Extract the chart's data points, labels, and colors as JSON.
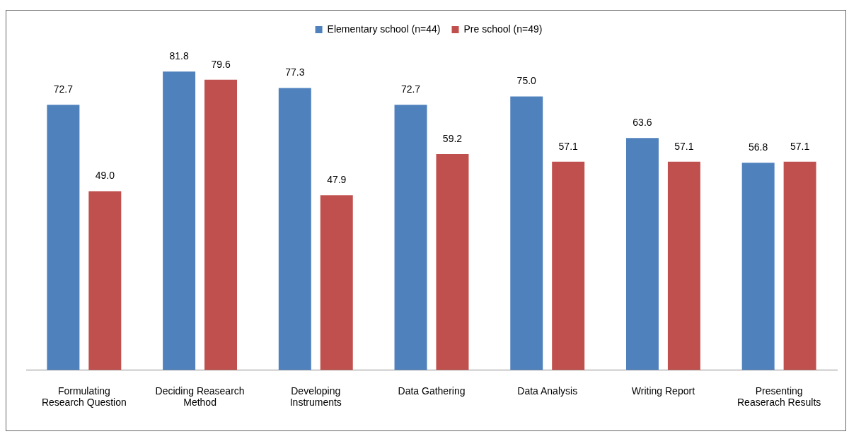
{
  "chart_data": {
    "type": "bar",
    "categories": [
      "Formulating Research Question",
      "Deciding Reasearch Method",
      "Developing Instruments",
      "Data Gathering",
      "Data Analysis",
      "Writing Report",
      "Presenting Reaserach Results"
    ],
    "series": [
      {
        "name": "Elementary school (n=44)",
        "color": "#4f81bd",
        "values": [
          72.7,
          81.8,
          77.3,
          72.7,
          75,
          63.6,
          56.8
        ],
        "value_labels": [
          "72.7",
          "81.8",
          "77.3",
          "72.7",
          "75.0",
          "63.6",
          "56.8"
        ]
      },
      {
        "name": "Pre school (n=49)",
        "color": "#c0504d",
        "values": [
          49,
          79.6,
          47.9,
          59.2,
          57.1,
          57.1,
          57.1
        ],
        "value_labels": [
          "49.0",
          "79.6",
          "47.9",
          "59.2",
          "57.1",
          "57.1",
          "57.1"
        ]
      }
    ],
    "tick_labels": "x",
    "grid": false,
    "legend": "top"
  }
}
